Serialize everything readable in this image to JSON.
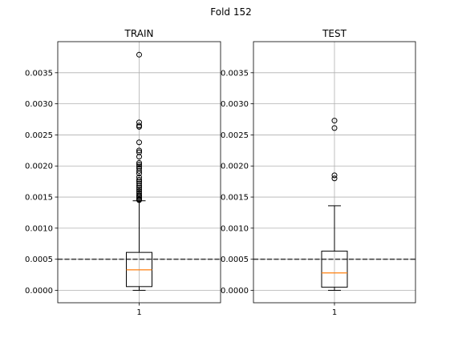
{
  "figure": {
    "suptitle": "Fold 152"
  },
  "style": {
    "box_color": "#000000",
    "median_color": "#ff7f0e",
    "grid_color": "#b0b0b0",
    "reference_line_color": "#3a3a3a"
  },
  "chart_data": [
    {
      "type": "box",
      "title": "TRAIN",
      "xlabel": "",
      "ylabel": "",
      "categories": [
        "1"
      ],
      "ylim": [
        -0.0002,
        0.004
      ],
      "yticks": [
        0.0,
        0.0005,
        0.001,
        0.0015,
        0.002,
        0.0025,
        0.003,
        0.0035
      ],
      "ytick_labels": [
        "0.0000",
        "0.0005",
        "0.0010",
        "0.0015",
        "0.0020",
        "0.0025",
        "0.0030",
        "0.0035"
      ],
      "grid": true,
      "reference_line": 0.0005,
      "box": {
        "whisker_low": 0.0,
        "q1": 6e-05,
        "median": 0.00033,
        "q3": 0.00061,
        "whisker_high": 0.00144
      },
      "outliers": [
        0.00379,
        0.0027,
        0.00265,
        0.00263,
        0.00238,
        0.00225,
        0.00222,
        0.00215,
        0.00205,
        0.00202,
        0.00199,
        0.00196,
        0.00192,
        0.00188,
        0.00182,
        0.00178,
        0.00175,
        0.00172,
        0.00168,
        0.00165,
        0.00162,
        0.00159,
        0.00156,
        0.00153,
        0.00151,
        0.00149,
        0.00147,
        0.00146,
        0.00145
      ]
    },
    {
      "type": "box",
      "title": "TEST",
      "xlabel": "",
      "ylabel": "",
      "categories": [
        "1"
      ],
      "ylim": [
        -0.0002,
        0.004
      ],
      "yticks": [
        0.0,
        0.0005,
        0.001,
        0.0015,
        0.002,
        0.0025,
        0.003,
        0.0035
      ],
      "ytick_labels": [
        "0.0000",
        "0.0005",
        "0.0010",
        "0.0015",
        "0.0020",
        "0.0025",
        "0.0030",
        "0.0035"
      ],
      "grid": true,
      "reference_line": 0.0005,
      "box": {
        "whisker_low": 0.0,
        "q1": 5e-05,
        "median": 0.00028,
        "q3": 0.00063,
        "whisker_high": 0.00136
      },
      "outliers": [
        0.00273,
        0.00261,
        0.00185,
        0.0018
      ]
    }
  ]
}
